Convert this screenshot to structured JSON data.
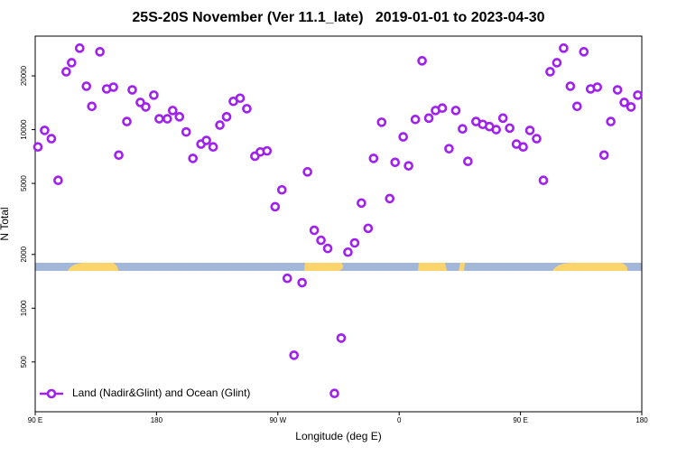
{
  "chart_data": {
    "type": "scatter",
    "title": "25S-20S November (Ver 11.1_late)   2019-01-01 to 2023-04-30",
    "x_label": "Longitude (deg E)",
    "y_label": "N Total",
    "log_y": true,
    "legend": "lower left",
    "xlim": [
      90,
      540
    ],
    "xticks": [
      {
        "value": 90,
        "label": "90 E"
      },
      180,
      {
        "value": 270,
        "label": "90 W"
      },
      {
        "value": 360,
        "label": "0"
      },
      {
        "value": 450,
        "label": "90 E"
      },
      {
        "value": 540,
        "label": "180"
      }
    ],
    "ylim": [
      263,
      33400
    ],
    "yticks": [
      500,
      1000,
      2000,
      5000,
      10000,
      20000
    ],
    "series": [
      {
        "name": "Land (Nadir&Glint) and Ocean (Glint)",
        "color": "#a020f0",
        "x": [
          92,
          97,
          102,
          107,
          113,
          117,
          123,
          128,
          132,
          138,
          143,
          148,
          152,
          158,
          162,
          168,
          172,
          178,
          182,
          188,
          192,
          197,
          202,
          207,
          213,
          217,
          222,
          227,
          232,
          237,
          242,
          247,
          253,
          257,
          262,
          268,
          273,
          277,
          282,
          288,
          292,
          297,
          302,
          307,
          312,
          317,
          322,
          327,
          332,
          337,
          341,
          347,
          353,
          357,
          363,
          367,
          372,
          377,
          382,
          387,
          392,
          397,
          402,
          407,
          411,
          417,
          422,
          427,
          432,
          437,
          442,
          447,
          452,
          457,
          462,
          467,
          472,
          477,
          482,
          487,
          492,
          497,
          502,
          507,
          512,
          517,
          522,
          527,
          532,
          537
        ],
        "values": [
          8000,
          9900,
          8900,
          5200,
          21100,
          23700,
          28600,
          17500,
          13500,
          27300,
          16900,
          17300,
          7200,
          11100,
          16700,
          14200,
          13400,
          15600,
          11500,
          11500,
          12800,
          11800,
          9700,
          6900,
          8300,
          8700,
          8000,
          10600,
          11800,
          14400,
          15000,
          13100,
          7100,
          7500,
          7600,
          3700,
          4600,
          1470,
          545,
          1390,
          5800,
          2730,
          2400,
          2160,
          333,
          680,
          2060,
          2320,
          3880,
          2800,
          6900,
          11000,
          4110,
          6560,
          9110,
          6270,
          11400,
          24300,
          11600,
          12800,
          13200,
          7820,
          12800,
          10100,
          6640,
          11100,
          10700,
          10400,
          10000,
          11600,
          10200,
          8300,
          8000,
          9900,
          8900,
          5200,
          21100,
          23700,
          28600,
          17500,
          13500,
          27300,
          16900,
          17300,
          7200,
          11100,
          16700,
          14200,
          13400,
          15600
        ]
      }
    ]
  }
}
